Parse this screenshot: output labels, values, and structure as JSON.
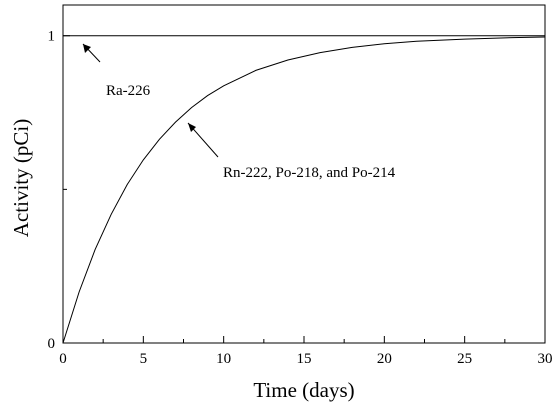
{
  "chart_data": {
    "type": "line",
    "title": "",
    "xlabel": "Time (days)",
    "ylabel": "Activity (pCi)",
    "xlim": [
      0,
      30
    ],
    "ylim": [
      0,
      1.1
    ],
    "x_ticks": [
      "0",
      "5",
      "10",
      "15",
      "20",
      "25",
      "30"
    ],
    "y_ticks": [
      "0",
      "1"
    ],
    "grid": false,
    "series": [
      {
        "name": "Ra-226",
        "x": [
          0,
          30
        ],
        "y": [
          1,
          1
        ]
      },
      {
        "name": "Rn-222, Po-218, and Po-214",
        "x": [
          0,
          1,
          2,
          3,
          4,
          5,
          6,
          7,
          8,
          9,
          10,
          12,
          14,
          16,
          18,
          20,
          22,
          25,
          28,
          30
        ],
        "y": [
          0,
          0.166,
          0.304,
          0.419,
          0.516,
          0.596,
          0.663,
          0.719,
          0.766,
          0.805,
          0.837,
          0.887,
          0.921,
          0.945,
          0.962,
          0.974,
          0.982,
          0.989,
          0.994,
          0.996
        ]
      }
    ],
    "annotations": [
      {
        "text": "Ra-226"
      },
      {
        "text": "Rn-222, Po-218, and Po-214"
      }
    ]
  }
}
